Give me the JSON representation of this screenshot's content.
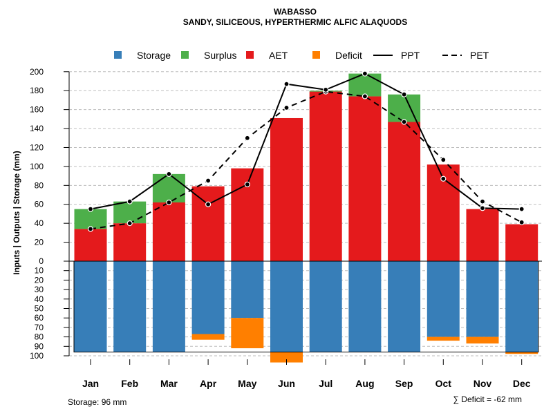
{
  "chart_data": {
    "type": "bar",
    "title": "WABASSO",
    "subtitle": "SANDY, SILICEOUS, HYPERTHERMIC ALFIC ALAQUODS",
    "ylabel": "Inputs | Outputs | Storage    (mm)",
    "categories": [
      "Jan",
      "Feb",
      "Mar",
      "Apr",
      "May",
      "Jun",
      "Jul",
      "Aug",
      "Sep",
      "Oct",
      "Nov",
      "Dec"
    ],
    "upper_axis": {
      "ylim": [
        0,
        200
      ],
      "ticks": [
        "0",
        "20",
        "40",
        "60",
        "80",
        "100",
        "120",
        "140",
        "160",
        "180",
        "200"
      ]
    },
    "lower_axis": {
      "ylim": [
        0,
        100
      ],
      "ticks": [
        "0",
        "10",
        "20",
        "30",
        "40",
        "50",
        "60",
        "70",
        "80",
        "90",
        "100"
      ]
    },
    "legend": {
      "placement": "top",
      "items": [
        {
          "label": "Storage",
          "kind": "square",
          "color": "#377eb8"
        },
        {
          "label": "Surplus",
          "kind": "square",
          "color": "#4daf4a"
        },
        {
          "label": "AET",
          "kind": "square",
          "color": "#e41a1c"
        },
        {
          "label": "Deficit",
          "kind": "square",
          "color": "#ff7f00"
        },
        {
          "label": "PPT",
          "kind": "solid"
        },
        {
          "label": "PET",
          "kind": "dashed"
        }
      ]
    },
    "series": [
      {
        "name": "AET",
        "values": [
          34,
          40,
          62,
          79,
          98,
          151,
          179,
          174,
          147,
          102,
          55,
          39
        ]
      },
      {
        "name": "Surplus",
        "values": [
          21,
          23,
          30,
          0,
          0,
          0,
          1,
          24,
          29,
          0,
          0,
          0
        ]
      },
      {
        "name": "PPT",
        "values": [
          55,
          63,
          92,
          60,
          81,
          187,
          181,
          198,
          176,
          87,
          56,
          55
        ]
      },
      {
        "name": "PET",
        "values": [
          34,
          40,
          62,
          85,
          130,
          162,
          179,
          174,
          147,
          107,
          63,
          41
        ]
      },
      {
        "name": "Storage",
        "values": [
          96,
          96,
          96,
          77,
          60,
          96,
          96,
          96,
          96,
          80,
          80,
          96
        ]
      },
      {
        "name": "Deficit",
        "values": [
          0,
          0,
          0,
          6,
          32,
          11,
          0,
          0,
          0,
          4,
          7,
          2
        ]
      }
    ],
    "colors": {
      "storage": "#377eb8",
      "surplus": "#4daf4a",
      "aet": "#e41a1c",
      "deficit": "#ff7f00",
      "line": "#000000",
      "grid": "#bdbdbd"
    },
    "annotations": {
      "storage_note": "Storage: 96 mm",
      "deficit_note": "∑ Deficit = -62 mm"
    }
  }
}
